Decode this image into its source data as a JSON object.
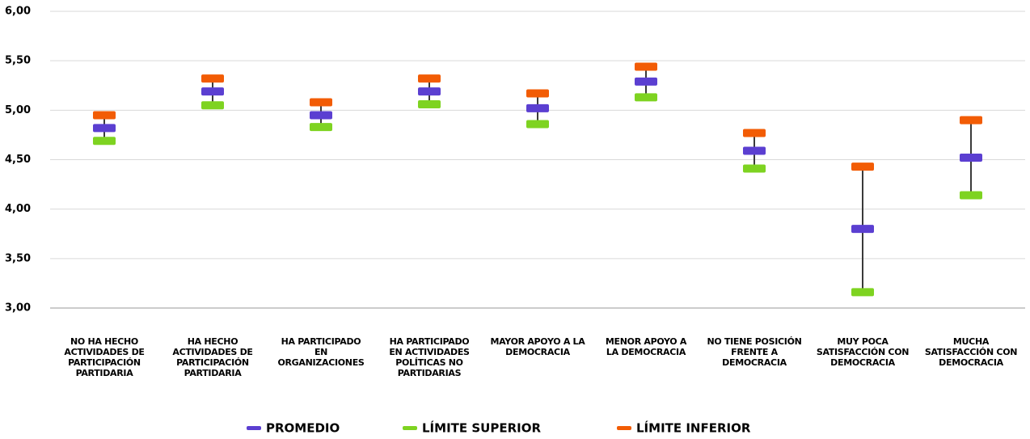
{
  "chart_data": {
    "type": "range",
    "categories": [
      "NO HA HECHO ACTIVIDADES DE PARTICIPACIÓN PARTIDARIA",
      "HA HECHO ACTIVIDADES DE PARTICIPACIÓN PARTIDARIA",
      "HA PARTICIPADO EN ORGANIZACIONES",
      "HA PARTICIPADO EN ACTIVIDADES POLÍTICAS NO PARTIDARIAS",
      "MAYOR APOYO A LA DEMOCRACIA",
      "MENOR APOYO A LA DEMOCRACIA",
      "NO TIENE POSICIÓN FRENTE A DEMOCRACIA",
      "MUY POCA SATISFACCIÓN CON DEMOCRACIA",
      "MUCHA SATISFACCIÓN CON DEMOCRACIA"
    ],
    "series": [
      {
        "name": "PROMEDIO",
        "color": "#5b3fd1",
        "values": [
          4.82,
          5.19,
          4.95,
          5.19,
          5.02,
          5.29,
          4.59,
          3.8,
          4.52
        ]
      },
      {
        "name": "LÍMITE SUPERIOR",
        "color": "#7ed321",
        "values": [
          4.69,
          5.05,
          4.83,
          5.06,
          4.86,
          5.13,
          4.41,
          3.16,
          4.14
        ]
      },
      {
        "name": "LÍMITE INFERIOR",
        "color": "#f25c05",
        "values": [
          4.95,
          5.32,
          5.08,
          5.32,
          5.17,
          5.44,
          4.77,
          4.43,
          4.9
        ]
      }
    ],
    "ylim": [
      3,
      6
    ],
    "yticks": [
      {
        "value": 3,
        "label": "3,00"
      },
      {
        "value": 3.5,
        "label": "3,50"
      },
      {
        "value": 4,
        "label": "4,00"
      },
      {
        "value": 4.5,
        "label": "4,50"
      },
      {
        "value": 5,
        "label": "5,00"
      },
      {
        "value": 5.5,
        "label": "5,50"
      },
      {
        "value": 6,
        "label": "6,00"
      }
    ],
    "grid": true
  }
}
